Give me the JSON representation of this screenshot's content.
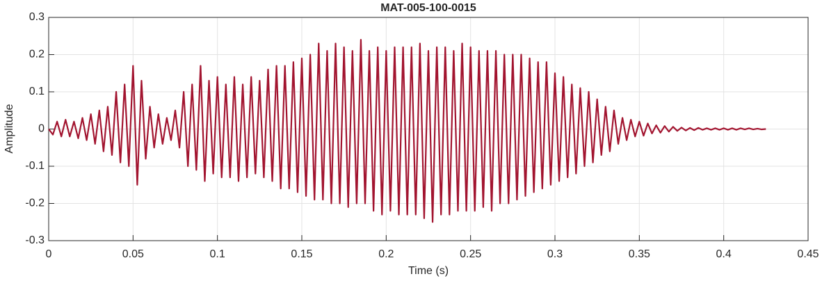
{
  "chart_data": {
    "type": "line",
    "title": "MAT-005-100-0015",
    "xlabel": "Time (s)",
    "ylabel": "Amplitude",
    "color": "#a2142f",
    "grid": true,
    "xlim": [
      0,
      0.45
    ],
    "ylim": [
      -0.3,
      0.3
    ],
    "xticks": [
      0,
      0.05,
      0.1,
      0.15,
      0.2,
      0.25,
      0.3,
      0.35,
      0.4,
      0.45
    ],
    "yticks": [
      -0.3,
      -0.2,
      -0.1,
      0,
      0.1,
      0.2,
      0.3
    ],
    "x": [
      0,
      0.0025,
      0.005,
      0.0075,
      0.01,
      0.0125,
      0.015,
      0.0175,
      0.02,
      0.0225,
      0.025,
      0.0275,
      0.03,
      0.0325,
      0.035,
      0.0375,
      0.04,
      0.0425,
      0.045,
      0.0475,
      0.05,
      0.0525,
      0.055,
      0.0575,
      0.06,
      0.0625,
      0.065,
      0.0675,
      0.07,
      0.0725,
      0.075,
      0.0775,
      0.08,
      0.0825,
      0.085,
      0.0875,
      0.09,
      0.0925,
      0.095,
      0.0975,
      0.1,
      0.1025,
      0.105,
      0.1075,
      0.11,
      0.1125,
      0.115,
      0.1175,
      0.12,
      0.1225,
      0.125,
      0.1275,
      0.13,
      0.1325,
      0.135,
      0.1375,
      0.14,
      0.1425,
      0.145,
      0.1475,
      0.15,
      0.1525,
      0.155,
      0.1575,
      0.16,
      0.1625,
      0.165,
      0.1675,
      0.17,
      0.1725,
      0.175,
      0.1775,
      0.18,
      0.1825,
      0.185,
      0.1875,
      0.19,
      0.1925,
      0.195,
      0.1975,
      0.2,
      0.2025,
      0.205,
      0.2075,
      0.21,
      0.2125,
      0.215,
      0.2175,
      0.22,
      0.2225,
      0.225,
      0.2275,
      0.23,
      0.2325,
      0.235,
      0.2375,
      0.24,
      0.2425,
      0.245,
      0.2475,
      0.25,
      0.2525,
      0.255,
      0.2575,
      0.26,
      0.2625,
      0.265,
      0.2675,
      0.27,
      0.2725,
      0.275,
      0.2775,
      0.28,
      0.2825,
      0.285,
      0.2875,
      0.29,
      0.2925,
      0.295,
      0.2975,
      0.3,
      0.3025,
      0.305,
      0.3075,
      0.31,
      0.3125,
      0.315,
      0.3175,
      0.32,
      0.3225,
      0.325,
      0.3275,
      0.33,
      0.3325,
      0.335,
      0.3375,
      0.34,
      0.3425,
      0.345,
      0.3475,
      0.35,
      0.3525,
      0.355,
      0.3575,
      0.36,
      0.3625,
      0.365,
      0.3675,
      0.37,
      0.3725,
      0.375,
      0.3775,
      0.38,
      0.3825,
      0.385,
      0.3875,
      0.39,
      0.3925,
      0.395,
      0.3975,
      0.4,
      0.4025,
      0.405,
      0.4075,
      0.41,
      0.4125,
      0.415,
      0.4175,
      0.42,
      0.4225,
      0.425
    ],
    "values": [
      0,
      -0.015,
      0.02,
      -0.02,
      0.025,
      -0.02,
      0.02,
      -0.025,
      0.03,
      -0.03,
      0.04,
      -0.04,
      0.05,
      -0.06,
      0.06,
      -0.07,
      0.1,
      -0.09,
      0.12,
      -0.1,
      0.17,
      -0.15,
      0.13,
      -0.08,
      0.06,
      -0.05,
      0.04,
      -0.04,
      0.03,
      -0.03,
      0.05,
      -0.05,
      0.1,
      -0.1,
      0.12,
      -0.11,
      0.17,
      -0.14,
      0.13,
      -0.12,
      0.14,
      -0.13,
      0.12,
      -0.13,
      0.14,
      -0.14,
      0.12,
      -0.13,
      0.14,
      -0.12,
      0.13,
      -0.13,
      0.16,
      -0.14,
      0.17,
      -0.16,
      0.17,
      -0.16,
      0.18,
      -0.17,
      0.19,
      -0.18,
      0.2,
      -0.19,
      0.23,
      -0.19,
      0.21,
      -0.2,
      0.23,
      -0.2,
      0.22,
      -0.21,
      0.21,
      -0.2,
      0.24,
      -0.2,
      0.21,
      -0.22,
      0.22,
      -0.23,
      0.21,
      -0.22,
      0.22,
      -0.23,
      0.22,
      -0.23,
      0.22,
      -0.23,
      0.23,
      -0.24,
      0.21,
      -0.25,
      0.22,
      -0.23,
      0.22,
      -0.23,
      0.21,
      -0.22,
      0.23,
      -0.22,
      0.22,
      -0.22,
      0.21,
      -0.21,
      0.21,
      -0.22,
      0.21,
      -0.2,
      0.2,
      -0.2,
      0.2,
      -0.19,
      0.2,
      -0.18,
      0.19,
      -0.17,
      0.18,
      -0.16,
      0.18,
      -0.15,
      0.15,
      -0.14,
      0.14,
      -0.13,
      0.12,
      -0.12,
      0.11,
      -0.1,
      0.1,
      -0.09,
      0.08,
      -0.07,
      0.06,
      -0.06,
      0.05,
      -0.04,
      0.03,
      -0.03,
      0.025,
      -0.02,
      0.02,
      -0.018,
      0.015,
      -0.012,
      0.01,
      -0.01,
      0.008,
      -0.007,
      0.006,
      -0.005,
      0.004,
      -0.004,
      0.003,
      -0.003,
      0.003,
      -0.002,
      0.002,
      -0.002,
      0.002,
      -0.002,
      0.002,
      -0.002,
      0.002,
      -0.002,
      0.002,
      -0.001,
      0.002,
      -0.001,
      0.001,
      -0.001,
      0
    ]
  }
}
